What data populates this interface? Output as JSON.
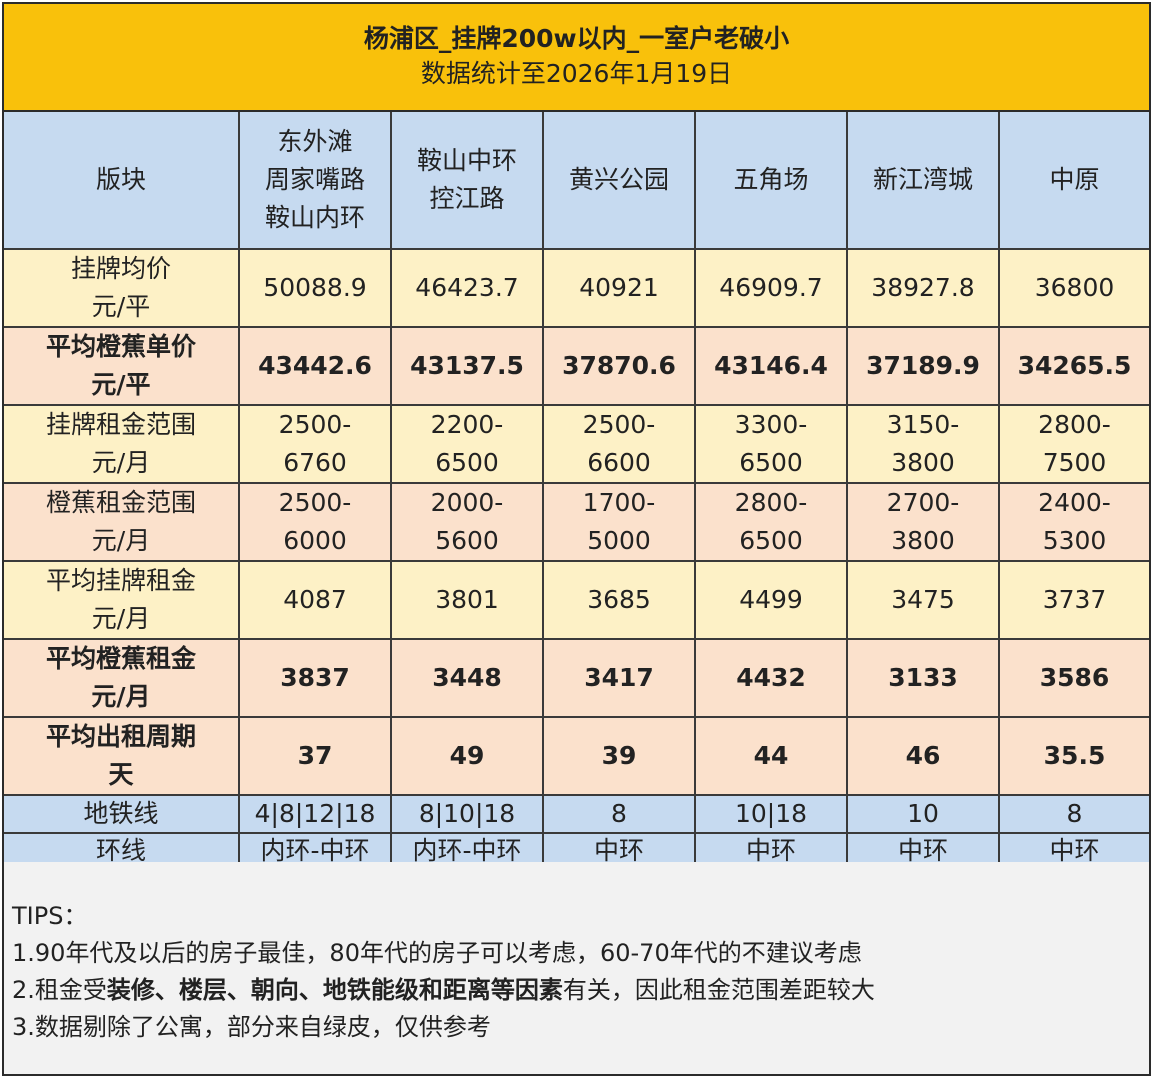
{
  "title": {
    "main": "杨浦区_挂牌200w以内_一室户老破小",
    "sub": "数据统计至2026年1月19日"
  },
  "header": {
    "label": "版块",
    "columns": [
      [
        "东外滩",
        "周家嘴路",
        "鞍山内环"
      ],
      [
        "鞍山中环",
        "控江路"
      ],
      [
        "黄兴公园"
      ],
      [
        "五角场"
      ],
      [
        "新江湾城"
      ],
      [
        "中原"
      ]
    ]
  },
  "rows": [
    {
      "label": [
        "挂牌均价",
        "元/平"
      ],
      "values": [
        "50088.9",
        "46423.7",
        "40921",
        "46909.7",
        "38927.8",
        "36800"
      ]
    },
    {
      "label": [
        "平均橙蕉单价",
        "元/平"
      ],
      "values": [
        "43442.6",
        "43137.5",
        "37870.6",
        "43146.4",
        "37189.9",
        "34265.5"
      ]
    },
    {
      "label": [
        "挂牌租金范围",
        "元/月"
      ],
      "values": [
        [
          "2500-",
          "6760"
        ],
        [
          "2200-",
          "6500"
        ],
        [
          "2500-",
          "6600"
        ],
        [
          "3300-",
          "6500"
        ],
        [
          "3150-",
          "3800"
        ],
        [
          "2800-",
          "7500"
        ]
      ]
    },
    {
      "label": [
        "橙蕉租金范围",
        "元/月"
      ],
      "values": [
        [
          "2500-",
          "6000"
        ],
        [
          "2000-",
          "5600"
        ],
        [
          "1700-",
          "5000"
        ],
        [
          "2800-",
          "6500"
        ],
        [
          "2700-",
          "3800"
        ],
        [
          "2400-",
          "5300"
        ]
      ]
    },
    {
      "label": [
        "平均挂牌租金",
        "元/月"
      ],
      "values": [
        "4087",
        "3801",
        "3685",
        "4499",
        "3475",
        "3737"
      ]
    },
    {
      "label": [
        "平均橙蕉租金",
        "元/月"
      ],
      "values": [
        "3837",
        "3448",
        "3417",
        "4432",
        "3133",
        "3586"
      ]
    },
    {
      "label": [
        "平均出租周期",
        "天"
      ],
      "values": [
        "37",
        "49",
        "39",
        "44",
        "46",
        "35.5"
      ]
    },
    {
      "label": [
        "地铁线"
      ],
      "values": [
        "4|8|12|18",
        "8|10|18",
        "8",
        "10|18",
        "10",
        "8"
      ]
    },
    {
      "label": [
        "环线"
      ],
      "values": [
        "内环-中环",
        "内环-中环",
        "中环",
        "中环",
        "中环",
        "中环"
      ]
    }
  ],
  "tips": {
    "heading": "TIPS：",
    "line1": "1.90年代及以后的房子最佳，80年代的房子可以考虑，60-70年代的不建议考虑",
    "line2_prefix": "2.租金受",
    "line2_bold": "装修、楼层、朝向、地铁能级和距离等因素",
    "line2_suffix": "有关，因此租金范围差距较大",
    "line3": "3.数据剔除了公寓，部分来自绿皮，仅供参考"
  },
  "colors": {
    "title_bg": "#f9c10b",
    "header_bg": "#c6daf0",
    "yellow_row": "#fdf1c6",
    "orange_row": "#fbe1cc",
    "tips_bg": "#f2f2f2"
  }
}
